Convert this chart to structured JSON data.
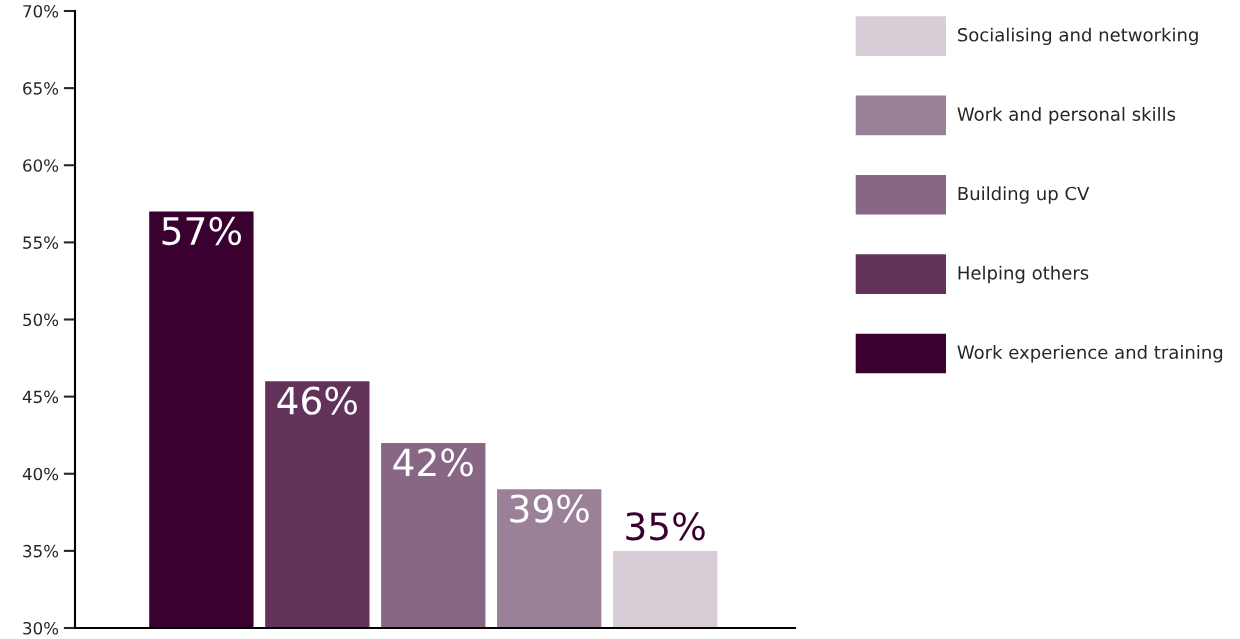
{
  "chart_data": {
    "type": "bar",
    "categories": [
      null,
      null,
      null,
      null,
      null
    ],
    "series": [
      {
        "name": "Work experience and training",
        "color": "#3a0030",
        "values": [
          57,
          null,
          null,
          null,
          null
        ],
        "value_labels": [
          "57%",
          null,
          null,
          null,
          null
        ]
      },
      {
        "name": "Helping others",
        "color": "#62325a",
        "values": [
          null,
          46,
          null,
          null,
          null
        ],
        "value_labels": [
          null,
          "46%",
          null,
          null,
          null
        ]
      },
      {
        "name": "Building up CV",
        "color": "#876784",
        "values": [
          null,
          null,
          42,
          null,
          null
        ],
        "value_labels": [
          null,
          null,
          "42%",
          null,
          null
        ]
      },
      {
        "name": "Work and personal skills",
        "color": "#9b8198",
        "values": [
          null,
          null,
          null,
          39,
          null
        ],
        "value_labels": [
          null,
          null,
          null,
          "39%",
          null
        ]
      },
      {
        "name": "Socialising and networking",
        "color": "#d8ccd6",
        "values": [
          null,
          null,
          null,
          null,
          35
        ],
        "value_labels": [
          null,
          null,
          null,
          null,
          "35%"
        ]
      }
    ],
    "ylim": [
      30,
      70
    ],
    "yticks": [
      {
        "value": 30,
        "label": "30%"
      },
      {
        "value": 35,
        "label": "35%"
      },
      {
        "value": 40,
        "label": "40%"
      },
      {
        "value": 45,
        "label": "45%"
      },
      {
        "value": 50,
        "label": "50%"
      },
      {
        "value": 55,
        "label": "55%"
      },
      {
        "value": 60,
        "label": "60%"
      },
      {
        "value": 65,
        "label": "65%"
      },
      {
        "value": 70,
        "label": "70%"
      }
    ],
    "grid": false,
    "legend": "top right"
  }
}
